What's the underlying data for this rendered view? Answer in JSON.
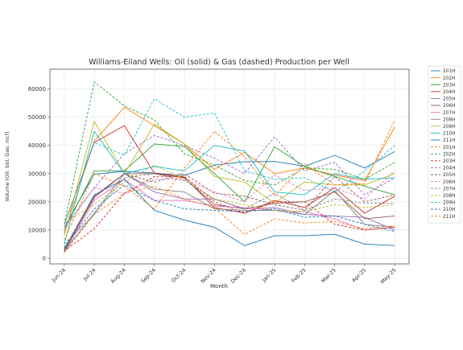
{
  "chart_data": {
    "type": "line",
    "title": "Williams-Eiland Wells: Oil (solid) & Gas (dashed) Production per Well",
    "xlabel": "Month",
    "ylabel": "Volume (Oil: bbl, Gas: mcf)",
    "categories": [
      "Jun-24",
      "Jul-24",
      "Aug-24",
      "Sep-24",
      "Oct-24",
      "Nov-24",
      "Dec-24",
      "Jan-25",
      "Feb-25",
      "Mar-25",
      "Apr-25",
      "May-25"
    ],
    "ylim": [
      -2000,
      67000
    ],
    "yticks": [
      0,
      10000,
      20000,
      30000,
      40000,
      50000,
      60000
    ],
    "ytick_labels": [
      "0",
      "10000",
      "20000",
      "30000",
      "40000",
      "50000",
      "60000"
    ],
    "grid": true,
    "legend_position": "right, outside plot",
    "series": [
      {
        "name": "201H",
        "kind": "oil",
        "color": "#1f77b4",
        "values": [
          11000,
          29800,
          30800,
          30200,
          29300,
          33000,
          34200,
          34300,
          32600,
          36500,
          32000,
          37800
        ]
      },
      {
        "name": "202H",
        "kind": "oil",
        "color": "#ff7f0e",
        "values": [
          9000,
          41500,
          53500,
          47000,
          40500,
          31500,
          37500,
          30000,
          32000,
          29500,
          27500,
          46500
        ]
      },
      {
        "name": "203H",
        "kind": "oil",
        "color": "#2ca02c",
        "values": [
          10000,
          31000,
          31000,
          40500,
          39600,
          30000,
          20000,
          39500,
          32500,
          29000,
          25500,
          22500
        ]
      },
      {
        "name": "204H",
        "kind": "oil",
        "color": "#d62728",
        "values": [
          12000,
          41000,
          47000,
          30200,
          28700,
          18000,
          16000,
          20500,
          18000,
          25000,
          16000,
          22000
        ]
      },
      {
        "name": "205H",
        "kind": "oil",
        "color": "#9467bd",
        "values": [
          3000,
          22000,
          30000,
          23500,
          21000,
          21000,
          17500,
          18000,
          15500,
          15000,
          14500,
          10000
        ]
      },
      {
        "name": "206H",
        "kind": "oil",
        "color": "#8c564b",
        "values": [
          2500,
          21500,
          30000,
          30000,
          28500,
          19000,
          17500,
          19500,
          20000,
          23500,
          14000,
          15000
        ]
      },
      {
        "name": "207H",
        "kind": "oil",
        "color": "#e377c2",
        "values": [
          2000,
          20500,
          28000,
          20500,
          20500,
          18500,
          18000,
          17000,
          16500,
          14000,
          10000,
          11000
        ]
      },
      {
        "name": "208H",
        "kind": "oil",
        "color": "#7f7f7f",
        "values": [
          2500,
          16000,
          30000,
          24500,
          23500,
          17500,
          17000,
          17000,
          15500,
          24000,
          12000,
          11000
        ]
      },
      {
        "name": "209H",
        "kind": "oil",
        "color": "#bcbd22",
        "values": [
          8000,
          48500,
          30000,
          47500,
          40500,
          29000,
          27000,
          19500,
          27000,
          26000,
          26000,
          30000
        ]
      },
      {
        "name": "210H",
        "kind": "oil",
        "color": "#17becf",
        "values": [
          5000,
          45000,
          30000,
          32500,
          31000,
          40000,
          38000,
          23500,
          22500,
          30000,
          28000,
          28500
        ]
      },
      {
        "name": "211H",
        "kind": "oil",
        "color": "#1f77b4",
        "values": [
          3000,
          22500,
          28000,
          17000,
          13500,
          11000,
          4500,
          8000,
          8000,
          8500,
          5000,
          4500
        ]
      },
      {
        "name": "201H",
        "kind": "gas",
        "color": "#ff7f0e",
        "values": [
          2000,
          15500,
          23000,
          25500,
          21000,
          18000,
          8500,
          14000,
          12500,
          13000,
          10500,
          11500
        ]
      },
      {
        "name": "202H",
        "kind": "gas",
        "color": "#2ca02c",
        "values": [
          12000,
          62500,
          54000,
          49000,
          37000,
          33000,
          27500,
          26000,
          32000,
          31500,
          28000,
          34000
        ]
      },
      {
        "name": "203H",
        "kind": "gas",
        "color": "#d62728",
        "values": [
          2500,
          10500,
          23000,
          29000,
          29000,
          20000,
          16000,
          20000,
          20000,
          12000,
          10000,
          11000
        ]
      },
      {
        "name": "204H",
        "kind": "gas",
        "color": "#9467bd",
        "values": [
          11000,
          25000,
          37000,
          43500,
          40000,
          35500,
          30000,
          43000,
          31000,
          34000,
          22500,
          28500
        ]
      },
      {
        "name": "205H",
        "kind": "gas",
        "color": "#8c564b",
        "values": [
          3500,
          22000,
          30000,
          27000,
          30000,
          23000,
          22000,
          19000,
          17000,
          29000,
          20000,
          22500
        ]
      },
      {
        "name": "206H",
        "kind": "gas",
        "color": "#e377c2",
        "values": [
          10000,
          25000,
          23000,
          28000,
          28000,
          23500,
          20000,
          29500,
          24000,
          25000,
          21000,
          31000
        ]
      },
      {
        "name": "207H",
        "kind": "gas",
        "color": "#7f7f7f",
        "values": [
          5000,
          15500,
          28500,
          30000,
          27500,
          21000,
          17500,
          23000,
          17000,
          21000,
          19500,
          19500
        ]
      },
      {
        "name": "208H",
        "kind": "gas",
        "color": "#bcbd22",
        "values": [
          12500,
          19000,
          27000,
          33000,
          28000,
          21000,
          19000,
          17000,
          16500,
          19000,
          18000,
          19000
        ]
      },
      {
        "name": "209H",
        "kind": "gas",
        "color": "#17becf",
        "values": [
          12000,
          41000,
          36500,
          56500,
          50000,
          51500,
          31000,
          28000,
          28500,
          23500,
          31000,
          40000
        ]
      },
      {
        "name": "210H",
        "kind": "gas",
        "color": "#1f77b4",
        "values": [
          4000,
          17500,
          26000,
          20500,
          17500,
          17000,
          16500,
          17500,
          14500,
          15000,
          12000,
          9500
        ]
      },
      {
        "name": "211H",
        "kind": "gas",
        "color": "#ff7f0e",
        "values": [
          6500,
          30000,
          25500,
          17500,
          32000,
          45000,
          36000,
          22000,
          33500,
          26000,
          26500,
          49000
        ]
      }
    ]
  }
}
